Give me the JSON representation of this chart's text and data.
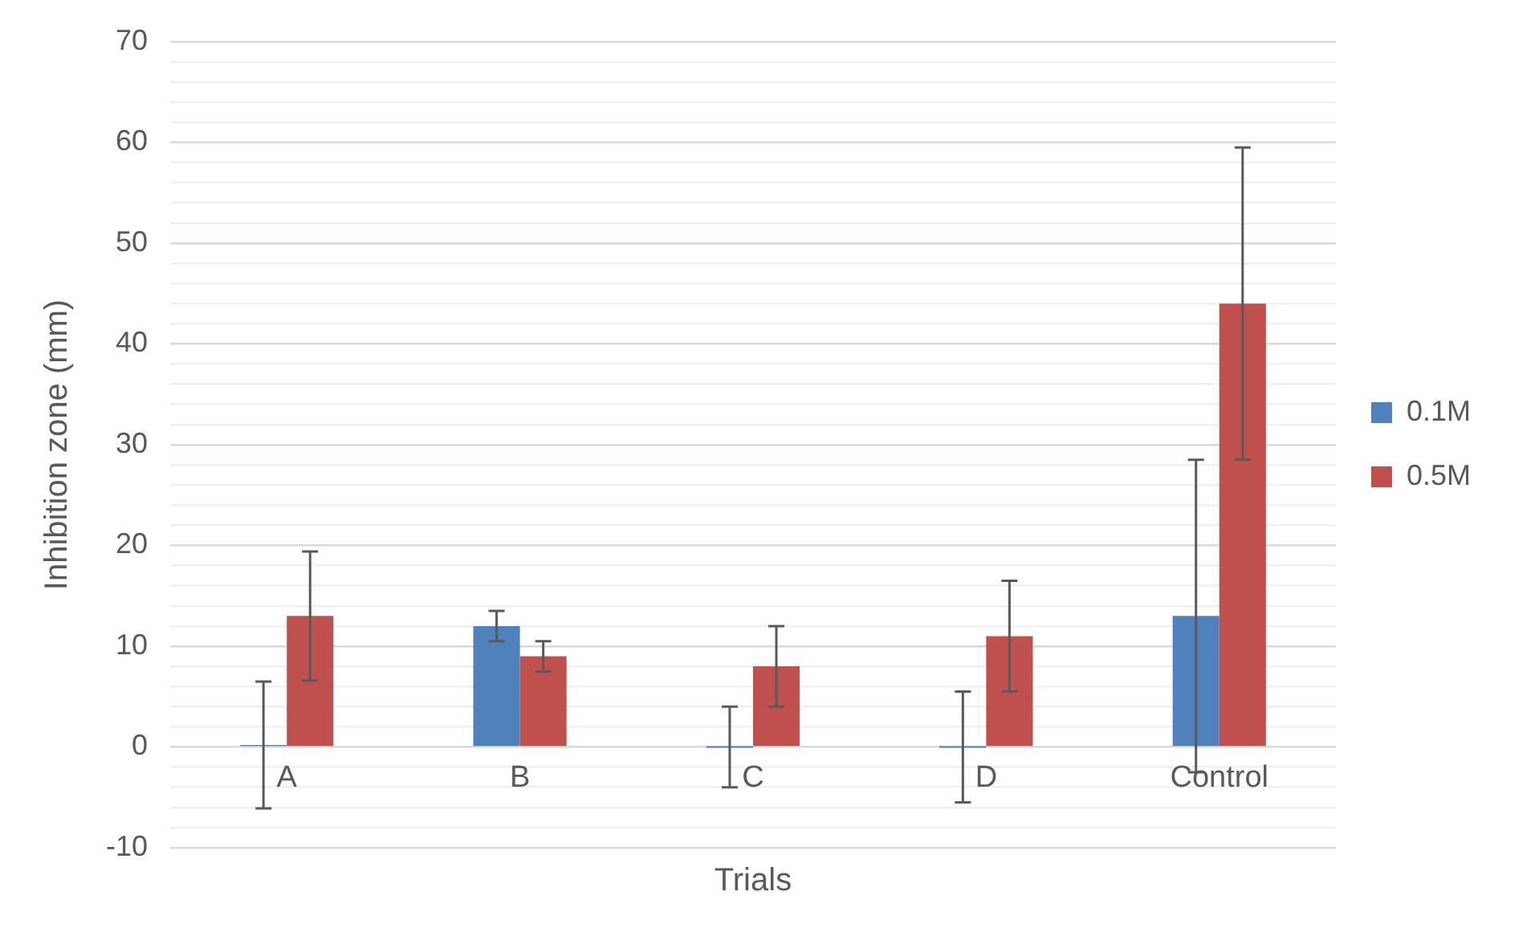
{
  "chart_data": {
    "type": "bar",
    "xlabel": "Trials",
    "ylabel": "Inhibition zone (mm)",
    "categories": [
      "A",
      "B",
      "C",
      "D",
      "Control"
    ],
    "series": [
      {
        "name": "0.1M",
        "color": "#4f81bd",
        "values": [
          0.2,
          12,
          0,
          0,
          13
        ],
        "errors": [
          6.3,
          1.5,
          4,
          5.5,
          15.5
        ]
      },
      {
        "name": "0.5M",
        "color": "#c0504d",
        "values": [
          13,
          9,
          8,
          11,
          44
        ],
        "errors": [
          6.4,
          1.5,
          4,
          5.5,
          15.5
        ]
      }
    ],
    "ylim": [
      -10,
      70
    ],
    "yticks": [
      -10,
      {
        "value": -8,
        "label": null
      },
      {
        "value": -6,
        "label": null
      },
      {
        "value": -4,
        "label": null
      },
      {
        "value": -2,
        "label": null
      },
      0,
      {
        "value": 2,
        "label": null
      },
      {
        "value": 4,
        "label": null
      },
      {
        "value": 6,
        "label": null
      },
      {
        "value": 8,
        "label": null
      },
      10,
      {
        "value": 12,
        "label": null
      },
      {
        "value": 14,
        "label": null
      },
      {
        "value": 16,
        "label": null
      },
      {
        "value": 18,
        "label": null
      },
      20,
      {
        "value": 22,
        "label": null
      },
      {
        "value": 24,
        "label": null
      },
      {
        "value": 26,
        "label": null
      },
      {
        "value": 28,
        "label": null
      },
      30,
      {
        "value": 32,
        "label": null
      },
      {
        "value": 34,
        "label": null
      },
      {
        "value": 36,
        "label": null
      },
      {
        "value": 38,
        "label": null
      },
      40,
      {
        "value": 42,
        "label": null
      },
      {
        "value": 44,
        "label": null
      },
      {
        "value": 46,
        "label": null
      },
      {
        "value": 48,
        "label": null
      },
      50,
      {
        "value": 52,
        "label": null
      },
      {
        "value": 54,
        "label": null
      },
      {
        "value": 56,
        "label": null
      },
      {
        "value": 58,
        "label": null
      },
      60,
      {
        "value": 62,
        "label": null
      },
      {
        "value": 64,
        "label": null
      },
      {
        "value": 66,
        "label": null
      },
      {
        "value": 68,
        "label": null
      },
      70
    ],
    "grid": "y",
    "legend": "right"
  }
}
